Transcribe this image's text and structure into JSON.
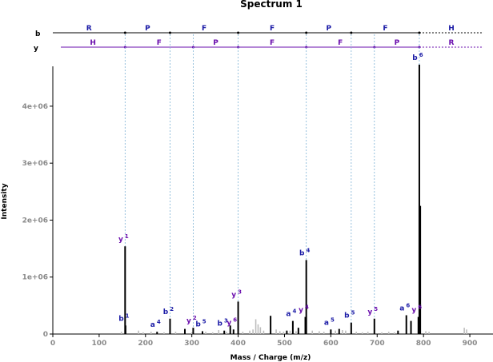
{
  "chart_data": {
    "type": "bar",
    "title": "Spectrum 1",
    "xlabel": "Mass / Charge (m/z)",
    "ylabel": "Intensity",
    "xlim": [
      0,
      950
    ],
    "ylim": [
      0,
      4700000
    ],
    "x_ticks": [
      "0",
      "100",
      "200",
      "300",
      "400",
      "500",
      "600",
      "700",
      "800",
      "900"
    ],
    "x_tick_values": [
      0,
      100,
      200,
      300,
      400,
      500,
      600,
      700,
      800,
      900
    ],
    "y_ticks": [
      "0",
      "1e+06",
      "2e+06",
      "3e+06",
      "4e+06"
    ],
    "y_tick_values": [
      0,
      1000000,
      2000000,
      3000000,
      4000000
    ],
    "b_label": "b",
    "y_label": "y",
    "b_sequence": [
      "R",
      "P",
      "F",
      "F",
      "P",
      "F",
      "H"
    ],
    "y_sequence": [
      "H",
      "F",
      "P",
      "F",
      "F",
      "P",
      "R"
    ],
    "b_breaks": [
      156,
      253,
      400,
      547,
      644,
      791
    ],
    "y_breaks": [
      156,
      303,
      400,
      547,
      694,
      791
    ],
    "colors": {
      "annotated": "#000000",
      "unannotated": "#bdbdbd",
      "b_ion": "#1a1aa6",
      "y_ion": "#6a0dad",
      "a_ion": "#1a1aa6",
      "guide": "#7fb3d5"
    },
    "annotated_peaks": [
      {
        "mz": 156,
        "intensity": 1540000,
        "label": "y",
        "num": "1",
        "series": "y"
      },
      {
        "mz": 157,
        "intensity": 150000,
        "label": "b",
        "num": "1",
        "series": "b"
      },
      {
        "mz": 225,
        "intensity": 40000,
        "label": "a",
        "num": "4",
        "series": "a"
      },
      {
        "mz": 253,
        "intensity": 270000,
        "label": "b",
        "num": "2",
        "series": "b"
      },
      {
        "mz": 285,
        "intensity": 90000,
        "label": "",
        "num": "",
        "series": "b"
      },
      {
        "mz": 303,
        "intensity": 110000,
        "label": "y",
        "num": "2",
        "series": "y"
      },
      {
        "mz": 323,
        "intensity": 50000,
        "label": "b",
        "num": "5",
        "series": "b"
      },
      {
        "mz": 370,
        "intensity": 60000,
        "label": "b",
        "num": "3",
        "series": "b"
      },
      {
        "mz": 383,
        "intensity": 150000,
        "label": "",
        "num": "",
        "series": "b"
      },
      {
        "mz": 390,
        "intensity": 80000,
        "label": "y",
        "num": "6",
        "series": "y"
      },
      {
        "mz": 400,
        "intensity": 570000,
        "label": "y",
        "num": "3",
        "series": "y"
      },
      {
        "mz": 470,
        "intensity": 320000,
        "label": "",
        "num": "",
        "series": "b"
      },
      {
        "mz": 505,
        "intensity": 60000,
        "label": "",
        "num": "",
        "series": "b"
      },
      {
        "mz": 518,
        "intensity": 230000,
        "label": "a",
        "num": "4",
        "series": "a"
      },
      {
        "mz": 530,
        "intensity": 110000,
        "label": "",
        "num": "",
        "series": "b"
      },
      {
        "mz": 545,
        "intensity": 300000,
        "label": "y",
        "num": "4",
        "series": "y"
      },
      {
        "mz": 547,
        "intensity": 1300000,
        "label": "b",
        "num": "4",
        "series": "b"
      },
      {
        "mz": 600,
        "intensity": 80000,
        "label": "a",
        "num": "5",
        "series": "a"
      },
      {
        "mz": 618,
        "intensity": 90000,
        "label": "",
        "num": "",
        "series": "b"
      },
      {
        "mz": 644,
        "intensity": 200000,
        "label": "b",
        "num": "5",
        "series": "b"
      },
      {
        "mz": 694,
        "intensity": 270000,
        "label": "y",
        "num": "5",
        "series": "y"
      },
      {
        "mz": 745,
        "intensity": 60000,
        "label": "",
        "num": "",
        "series": "b"
      },
      {
        "mz": 763,
        "intensity": 330000,
        "label": "a",
        "num": "6",
        "series": "a"
      },
      {
        "mz": 773,
        "intensity": 230000,
        "label": "",
        "num": "",
        "series": "b"
      },
      {
        "mz": 789,
        "intensity": 300000,
        "label": "y",
        "num": "6",
        "series": "y"
      },
      {
        "mz": 791,
        "intensity": 4730000,
        "label": "b",
        "num": "6",
        "series": "b"
      },
      {
        "mz": 793,
        "intensity": 2250000,
        "label": "",
        "num": "",
        "series": "b"
      }
    ],
    "unannotated_peaks": [
      {
        "mz": 148,
        "intensity": 40000
      },
      {
        "mz": 185,
        "intensity": 60000
      },
      {
        "mz": 195,
        "intensity": 30000
      },
      {
        "mz": 212,
        "intensity": 40000
      },
      {
        "mz": 240,
        "intensity": 30000
      },
      {
        "mz": 265,
        "intensity": 40000
      },
      {
        "mz": 300,
        "intensity": 30000
      },
      {
        "mz": 330,
        "intensity": 40000
      },
      {
        "mz": 345,
        "intensity": 30000
      },
      {
        "mz": 358,
        "intensity": 70000
      },
      {
        "mz": 375,
        "intensity": 40000
      },
      {
        "mz": 410,
        "intensity": 40000
      },
      {
        "mz": 425,
        "intensity": 60000
      },
      {
        "mz": 432,
        "intensity": 80000
      },
      {
        "mz": 438,
        "intensity": 260000
      },
      {
        "mz": 443,
        "intensity": 170000
      },
      {
        "mz": 448,
        "intensity": 120000
      },
      {
        "mz": 455,
        "intensity": 60000
      },
      {
        "mz": 482,
        "intensity": 80000
      },
      {
        "mz": 490,
        "intensity": 50000
      },
      {
        "mz": 498,
        "intensity": 40000
      },
      {
        "mz": 512,
        "intensity": 60000
      },
      {
        "mz": 525,
        "intensity": 50000
      },
      {
        "mz": 560,
        "intensity": 60000
      },
      {
        "mz": 575,
        "intensity": 50000
      },
      {
        "mz": 585,
        "intensity": 40000
      },
      {
        "mz": 610,
        "intensity": 60000
      },
      {
        "mz": 625,
        "intensity": 70000
      },
      {
        "mz": 632,
        "intensity": 60000
      },
      {
        "mz": 655,
        "intensity": 40000
      },
      {
        "mz": 668,
        "intensity": 30000
      },
      {
        "mz": 680,
        "intensity": 40000
      },
      {
        "mz": 710,
        "intensity": 30000
      },
      {
        "mz": 725,
        "intensity": 40000
      },
      {
        "mz": 737,
        "intensity": 30000
      },
      {
        "mz": 805,
        "intensity": 50000
      },
      {
        "mz": 812,
        "intensity": 40000
      },
      {
        "mz": 888,
        "intensity": 110000
      },
      {
        "mz": 893,
        "intensity": 80000
      }
    ]
  }
}
